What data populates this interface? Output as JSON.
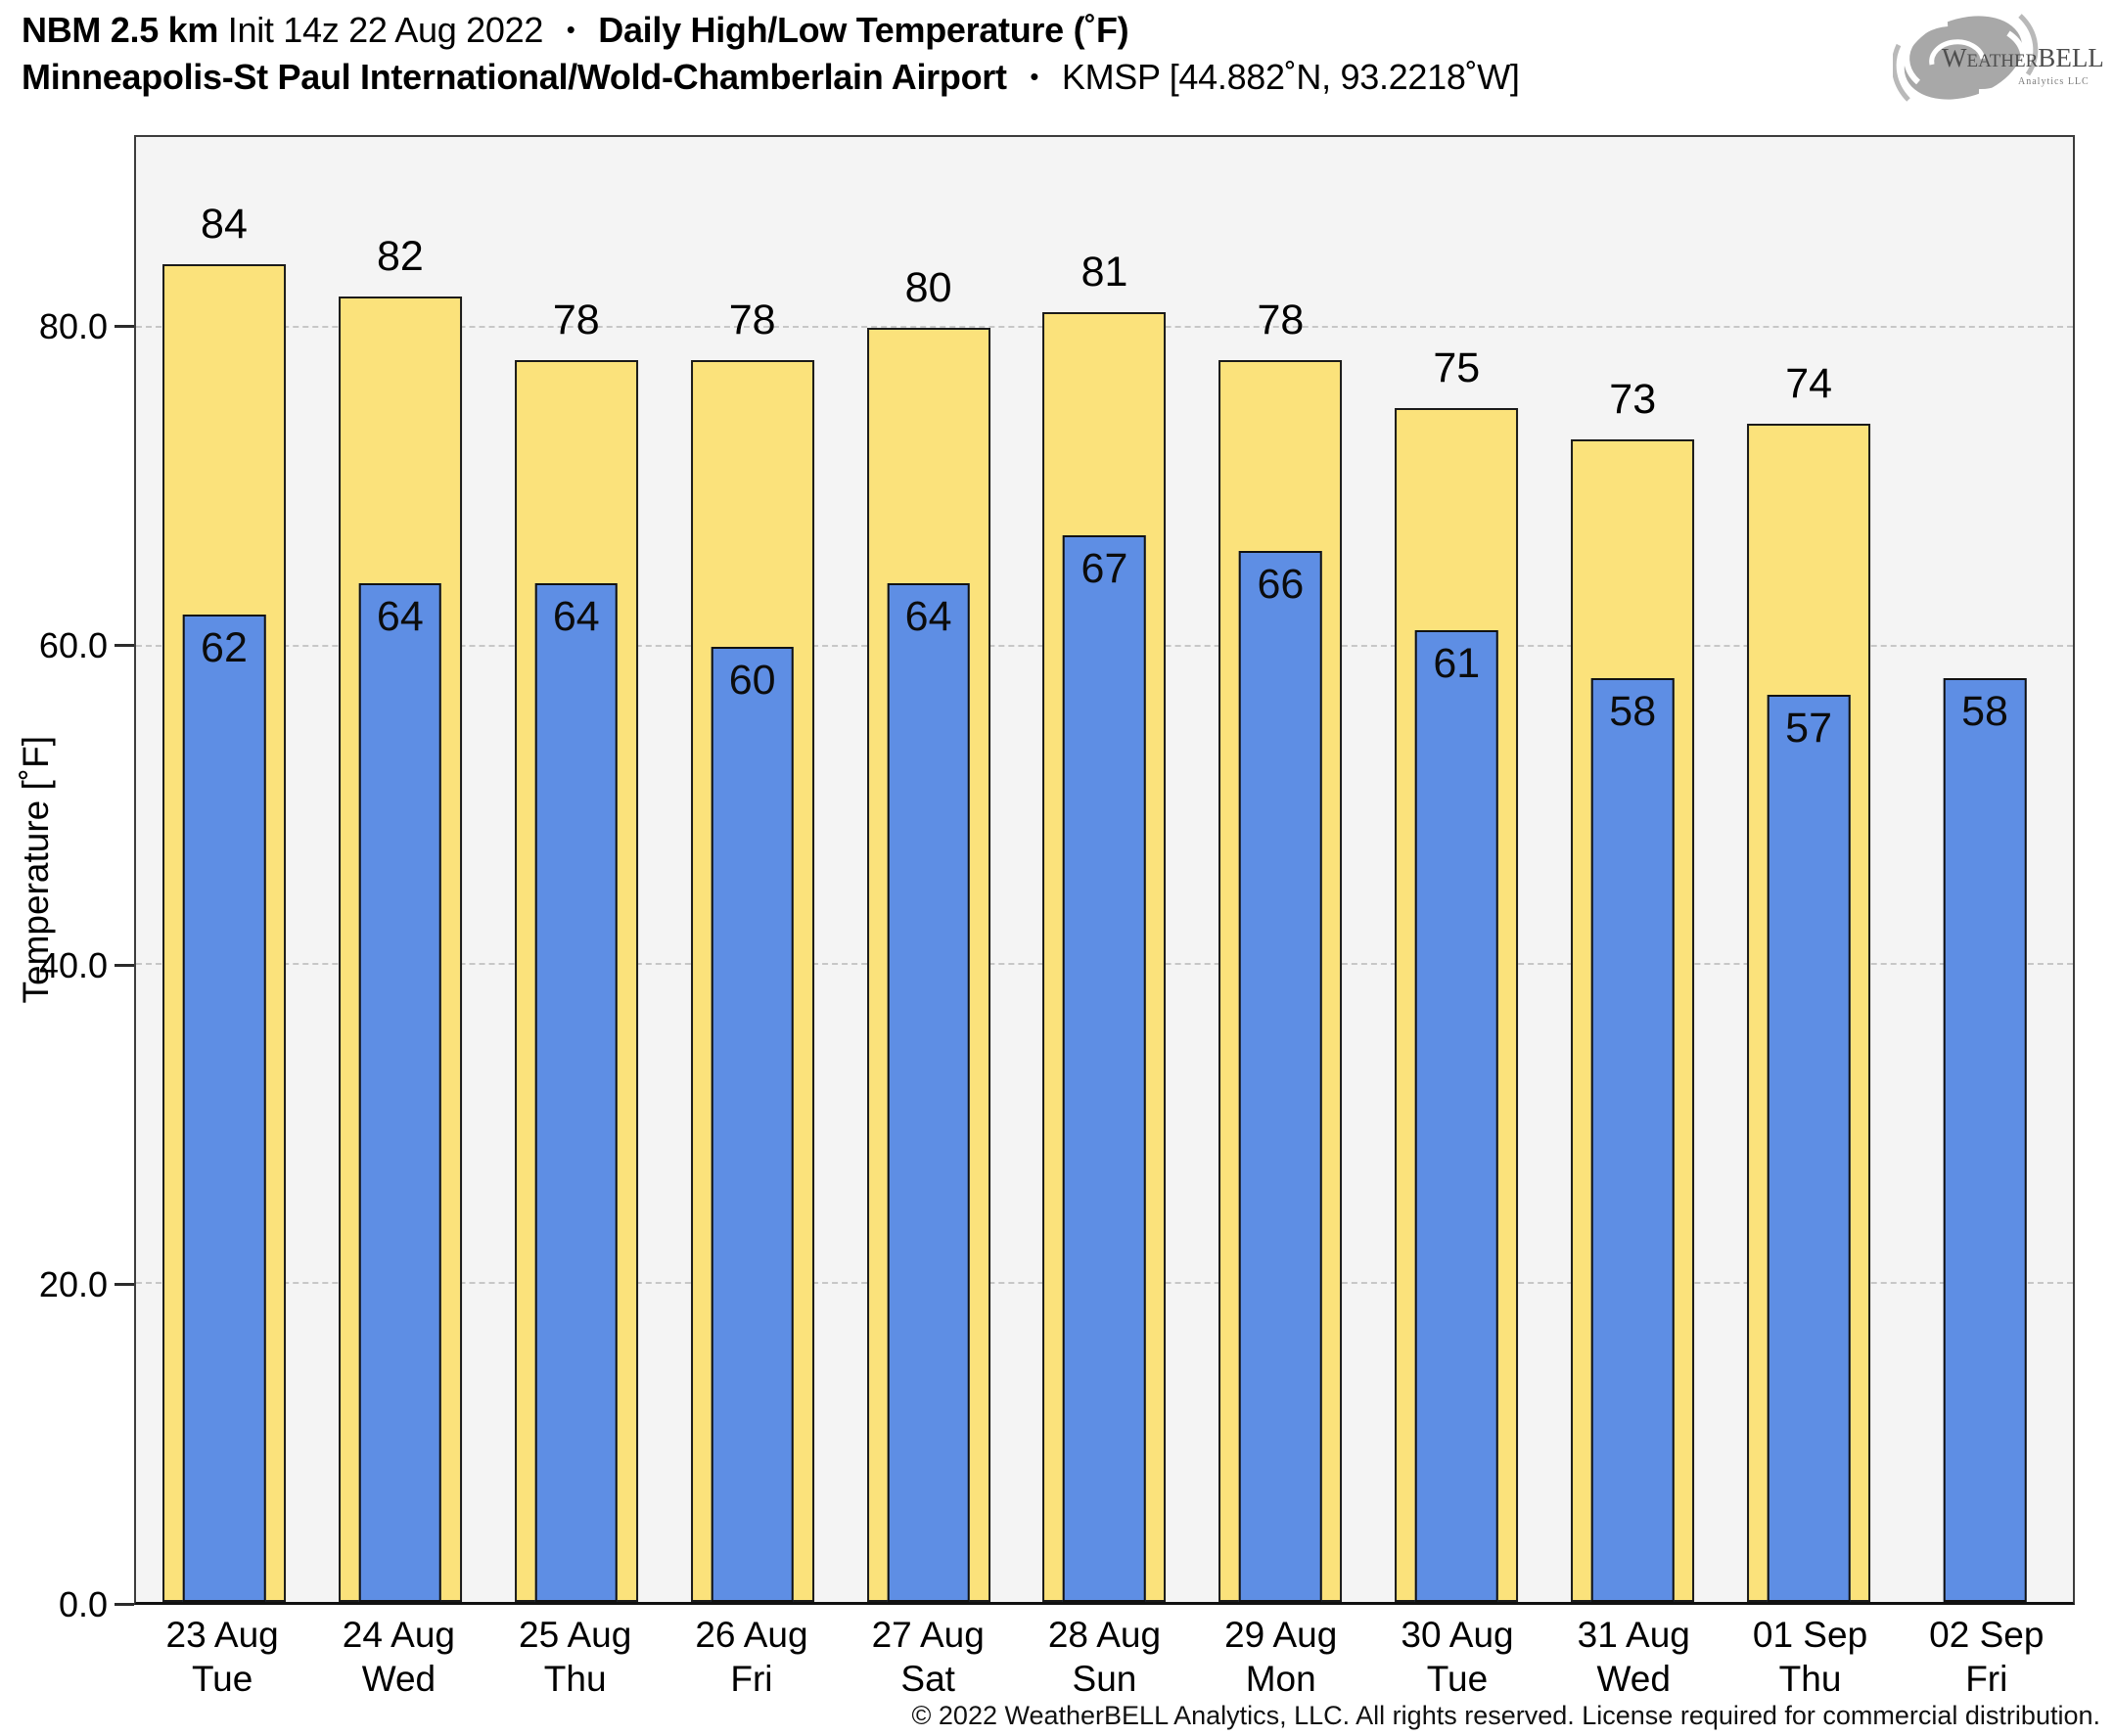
{
  "header": {
    "model": "NBM 2.5 km",
    "init": "Init 14z 22 Aug 2022",
    "separator": "•",
    "product": "Daily High/Low Temperature (˚F)",
    "station": "Minneapolis-St Paul International/Wold-Chamberlain Airport",
    "station_id": "KMSP [44.882˚N, 93.2218˚W]"
  },
  "logo": {
    "name": "WeatherBELL",
    "subtitle": "Analytics LLC"
  },
  "chart_data": {
    "type": "bar",
    "title": "NBM 2.5 km Daily High/Low Temperature (˚F) — KMSP",
    "ylabel": "Temperature [˚F]",
    "xlabel": "",
    "ylim": [
      0,
      92
    ],
    "grid": "horizontal dash-dot gridlines at each y tick",
    "legend_position": "none",
    "plot_background": "#f4f4f4",
    "yticks": [
      {
        "value": 0,
        "label": "0.0"
      },
      {
        "value": 20,
        "label": "20.0"
      },
      {
        "value": 40,
        "label": "40.0"
      },
      {
        "value": 60,
        "label": "60.0"
      },
      {
        "value": 80,
        "label": "80.0"
      }
    ],
    "categories": [
      {
        "date": "23 Aug",
        "day": "Tue"
      },
      {
        "date": "24 Aug",
        "day": "Wed"
      },
      {
        "date": "25 Aug",
        "day": "Thu"
      },
      {
        "date": "26 Aug",
        "day": "Fri"
      },
      {
        "date": "27 Aug",
        "day": "Sat"
      },
      {
        "date": "28 Aug",
        "day": "Sun"
      },
      {
        "date": "29 Aug",
        "day": "Mon"
      },
      {
        "date": "30 Aug",
        "day": "Tue"
      },
      {
        "date": "31 Aug",
        "day": "Wed"
      },
      {
        "date": "01 Sep",
        "day": "Thu"
      },
      {
        "date": "02 Sep",
        "day": "Fri"
      }
    ],
    "series": [
      {
        "name": "Daily High",
        "color": "#fbe27b",
        "border_color": "#1a1a1a",
        "values": [
          84,
          82,
          78,
          78,
          80,
          81,
          78,
          75,
          73,
          74,
          null
        ]
      },
      {
        "name": "Daily Low",
        "color": "#5e8ee4",
        "border_color": "#111111",
        "values": [
          62,
          64,
          64,
          60,
          64,
          67,
          66,
          61,
          58,
          57,
          58
        ]
      }
    ]
  },
  "footer": {
    "copyright": "© 2022 WeatherBELL Analytics, LLC. All rights reserved. License required for commercial distribution."
  }
}
